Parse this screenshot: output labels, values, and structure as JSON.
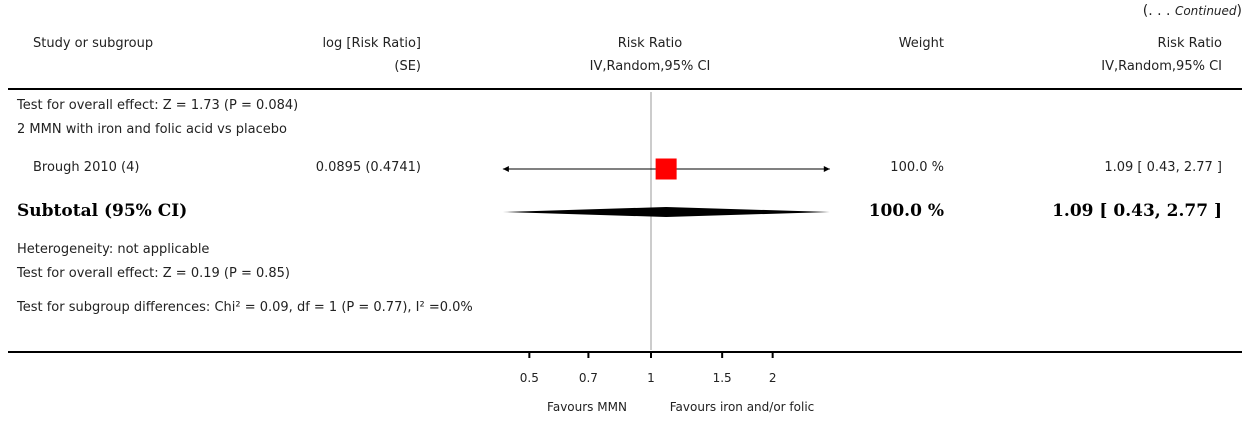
{
  "continued": {
    "prefix": "(. . .",
    "label": "Continued",
    "suffix": ")"
  },
  "headers": {
    "study": "Study or subgroup",
    "logrr": "log [Risk Ratio]",
    "logrr_sub": "(SE)",
    "rr": "Risk Ratio",
    "rr_sub": "IV,Random,95% CI",
    "weight": "Weight",
    "rr2": "Risk Ratio",
    "rr2_sub": "IV,Random,95% CI"
  },
  "rows": {
    "overall_prev": "Test for overall effect: Z = 1.73 (P = 0.084)",
    "group_title": "2 MMN with iron and folic acid vs placebo",
    "study_name": "Brough 2010 (4)",
    "study_logrr": "0.0895 (0.4741)",
    "study_weight": "100.0 %",
    "study_ci": "1.09 [ 0.43, 2.77 ]",
    "subtotal_label": "Subtotal (95% CI)",
    "subtotal_weight": "100.0 %",
    "subtotal_ci": "1.09 [ 0.43, 2.77 ]",
    "heterogeneity": "Heterogeneity: not applicable",
    "overall_effect": "Test for overall effect: Z = 0.19 (P = 0.85)",
    "subgroup_diff": "Test for subgroup differences: Chi² = 0.09, df = 1 (P = 0.77), I² =0.0%"
  },
  "colors": {
    "box": "#ff0000",
    "line": "#000000",
    "ref": "#999999"
  },
  "chart_data": {
    "type": "forest",
    "scale": "log",
    "xlim": [
      0.43,
      2.77
    ],
    "ticks": [
      0.5,
      0.7,
      1,
      1.5,
      2
    ],
    "tick_labels": [
      "0.5",
      "0.7",
      "1",
      "1.5",
      "2"
    ],
    "favours_left": "Favours MMN",
    "favours_right": "Favours iron and/or folic",
    "study": {
      "name": "Brough 2010 (4)",
      "rr": 1.09,
      "lo": 0.43,
      "hi": 2.77,
      "weight": 100.0
    },
    "subtotal": {
      "rr": 1.09,
      "lo": 0.43,
      "hi": 2.77
    }
  }
}
